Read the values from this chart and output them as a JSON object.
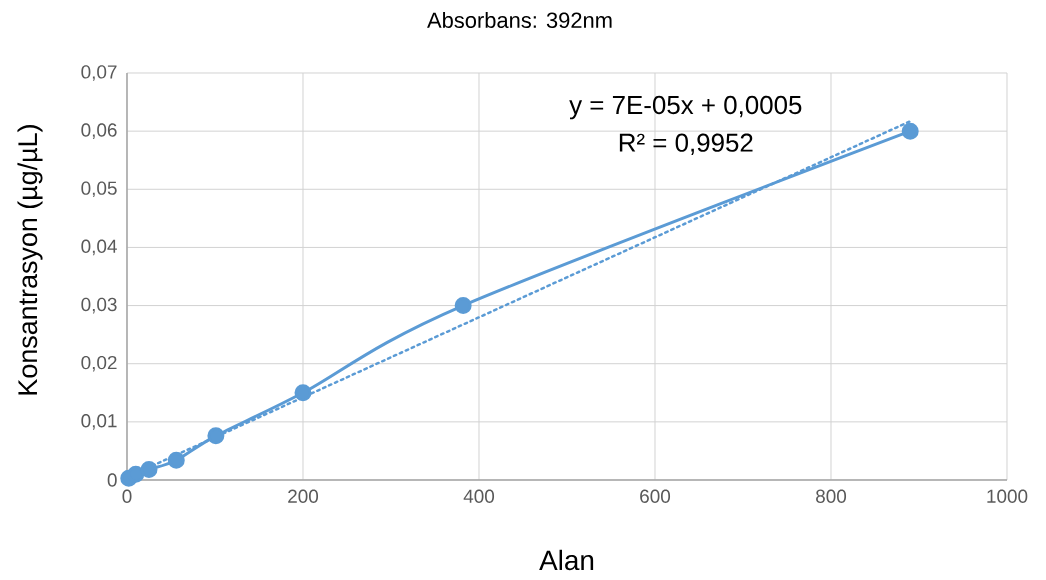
{
  "chart_data": {
    "type": "line",
    "title": "Absorbans: 392nm",
    "xlabel": "Alan",
    "ylabel": "Konsantrasyon (µg/µL)",
    "series": [
      {
        "color": "#5b9bd5",
        "x": [
          2,
          10,
          25,
          56,
          101,
          200,
          382,
          890
        ],
        "values": [
          0.0003,
          0.001,
          0.0018,
          0.0034,
          0.0076,
          0.015,
          0.03,
          0.06
        ],
        "marker": "circle",
        "line_style": "solid"
      },
      {
        "type": "line",
        "color": "#5b9bd5",
        "x": [
          2,
          890
        ],
        "values": [
          0.0006,
          0.0617
        ],
        "marker": "none",
        "line_style": "dotted"
      }
    ],
    "xlim": [
      0,
      1000
    ],
    "xticks": [
      0,
      200,
      400,
      600,
      800,
      1000
    ],
    "ylim": [
      0,
      0.07
    ],
    "yticks": [
      0,
      {
        "value": 0.01,
        "label": "0,01"
      },
      {
        "value": 0.02,
        "label": "0,02"
      },
      {
        "value": 0.03,
        "label": "0,03"
      },
      {
        "value": 0.04,
        "label": "0,04"
      },
      {
        "value": 0.05,
        "label": "0,05"
      },
      {
        "value": 0.06,
        "label": "0,06"
      },
      {
        "value": 0.07,
        "label": "0,07"
      }
    ],
    "annotations": [
      "y = 7E-05x + 0,0005",
      "R² = 0,9952"
    ],
    "grid": true
  }
}
